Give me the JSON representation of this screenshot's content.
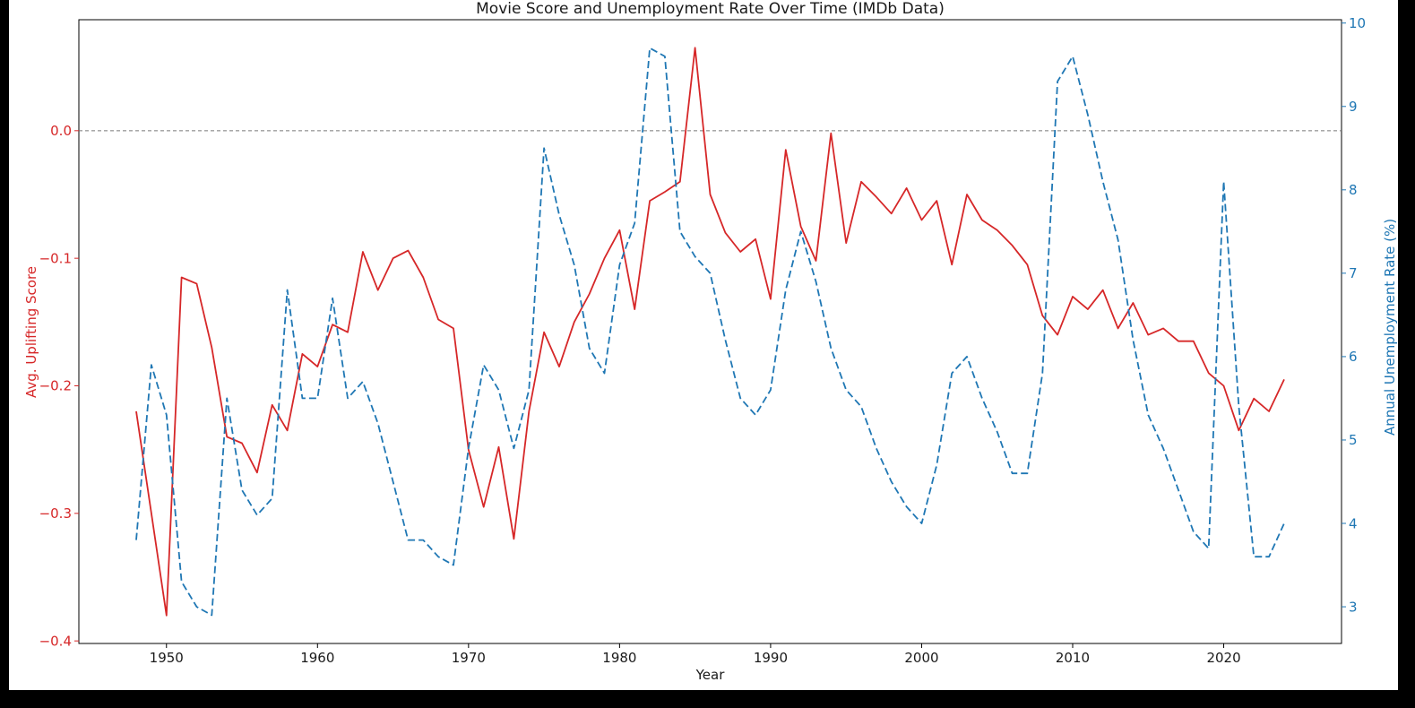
{
  "page": {
    "background_color": "#000000",
    "figure_background_color": "#ffffff"
  },
  "chart_data": {
    "type": "line",
    "title": "Movie Score and Unemployment Rate Over Time (IMDb Data)",
    "xlabel": "Year",
    "ylabel_left": "Avg. Uplifting Score",
    "ylabel_right": "Annual Unemployment Rate (%)",
    "grid": false,
    "legend": "none",
    "colors": {
      "score": "#d62728",
      "unemployment": "#1f77b4",
      "zero_line": "#777777",
      "frame": "#000000",
      "text": "#1a1a1a"
    },
    "xlim": [
      1944.2,
      2027.8
    ],
    "ylim_left": [
      -0.402,
      0.087
    ],
    "ylim_right": [
      2.56,
      10.04
    ],
    "zero_line_value": 0.0,
    "x_ticks": [
      1950,
      1960,
      1970,
      1980,
      1990,
      2000,
      2010,
      2020
    ],
    "y_ticks_left": [
      {
        "label": "0.0",
        "value": 0.0
      },
      {
        "label": "−0.1",
        "value": -0.1
      },
      {
        "label": "−0.2",
        "value": -0.2
      },
      {
        "label": "−0.3",
        "value": -0.3
      },
      {
        "label": "−0.4",
        "value": -0.4
      }
    ],
    "y_ticks_right": [
      {
        "label": "3",
        "value": 3
      },
      {
        "label": "4",
        "value": 4
      },
      {
        "label": "5",
        "value": 5
      },
      {
        "label": "6",
        "value": 6
      },
      {
        "label": "7",
        "value": 7
      },
      {
        "label": "8",
        "value": 8
      },
      {
        "label": "9",
        "value": 9
      },
      {
        "label": "10",
        "value": 10
      }
    ],
    "years": [
      1948,
      1949,
      1950,
      1951,
      1952,
      1953,
      1954,
      1955,
      1956,
      1957,
      1958,
      1959,
      1960,
      1961,
      1962,
      1963,
      1964,
      1965,
      1966,
      1967,
      1968,
      1969,
      1970,
      1971,
      1972,
      1973,
      1974,
      1975,
      1976,
      1977,
      1978,
      1979,
      1980,
      1981,
      1982,
      1983,
      1984,
      1985,
      1986,
      1987,
      1988,
      1989,
      1990,
      1991,
      1992,
      1993,
      1994,
      1995,
      1996,
      1997,
      1998,
      1999,
      2000,
      2001,
      2002,
      2003,
      2004,
      2005,
      2006,
      2007,
      2008,
      2009,
      2010,
      2011,
      2012,
      2013,
      2014,
      2015,
      2016,
      2017,
      2018,
      2019,
      2020,
      2021,
      2022,
      2023,
      2024
    ],
    "series": [
      {
        "id": "uplifting-score",
        "name": "Avg. Uplifting Score",
        "axis": "left",
        "color": "#d62728",
        "style": "solid",
        "values": [
          -0.22,
          -0.3,
          -0.38,
          -0.115,
          -0.12,
          -0.17,
          -0.24,
          -0.245,
          -0.268,
          -0.215,
          -0.235,
          -0.175,
          -0.185,
          -0.152,
          -0.158,
          -0.095,
          -0.125,
          -0.1,
          -0.094,
          -0.115,
          -0.148,
          -0.155,
          -0.25,
          -0.295,
          -0.248,
          -0.32,
          -0.22,
          -0.158,
          -0.185,
          -0.15,
          -0.128,
          -0.1,
          -0.078,
          -0.14,
          -0.055,
          -0.048,
          -0.04,
          0.065,
          -0.05,
          -0.08,
          -0.095,
          -0.085,
          -0.132,
          -0.015,
          -0.075,
          -0.102,
          -0.002,
          -0.088,
          -0.04,
          -0.052,
          -0.065,
          -0.045,
          -0.07,
          -0.055,
          -0.105,
          -0.05,
          -0.07,
          -0.078,
          -0.09,
          -0.105,
          -0.145,
          -0.16,
          -0.13,
          -0.14,
          -0.125,
          -0.155,
          -0.135,
          -0.16,
          -0.155,
          -0.165,
          -0.165,
          -0.19,
          -0.2,
          -0.235,
          -0.21,
          -0.22,
          -0.195
        ]
      },
      {
        "id": "unemployment-rate",
        "name": "Annual Unemployment Rate (%)",
        "axis": "right",
        "color": "#1f77b4",
        "style": "dashed",
        "values": [
          3.8,
          5.9,
          5.3,
          3.3,
          3.0,
          2.9,
          5.5,
          4.4,
          4.1,
          4.3,
          6.8,
          5.5,
          5.5,
          6.7,
          5.5,
          5.7,
          5.2,
          4.5,
          3.8,
          3.8,
          3.6,
          3.5,
          4.9,
          5.9,
          5.6,
          4.9,
          5.6,
          8.5,
          7.7,
          7.1,
          6.1,
          5.8,
          7.1,
          7.6,
          9.7,
          9.6,
          7.5,
          7.2,
          7.0,
          6.2,
          5.5,
          5.3,
          5.6,
          6.8,
          7.5,
          6.9,
          6.1,
          5.6,
          5.4,
          4.9,
          4.5,
          4.2,
          4.0,
          4.7,
          5.8,
          6.0,
          5.5,
          5.1,
          4.6,
          4.6,
          5.8,
          9.3,
          9.6,
          8.9,
          8.1,
          7.4,
          6.2,
          5.3,
          4.9,
          4.4,
          3.9,
          3.7,
          8.1,
          5.4,
          3.6,
          3.6,
          4.0
        ]
      }
    ]
  }
}
